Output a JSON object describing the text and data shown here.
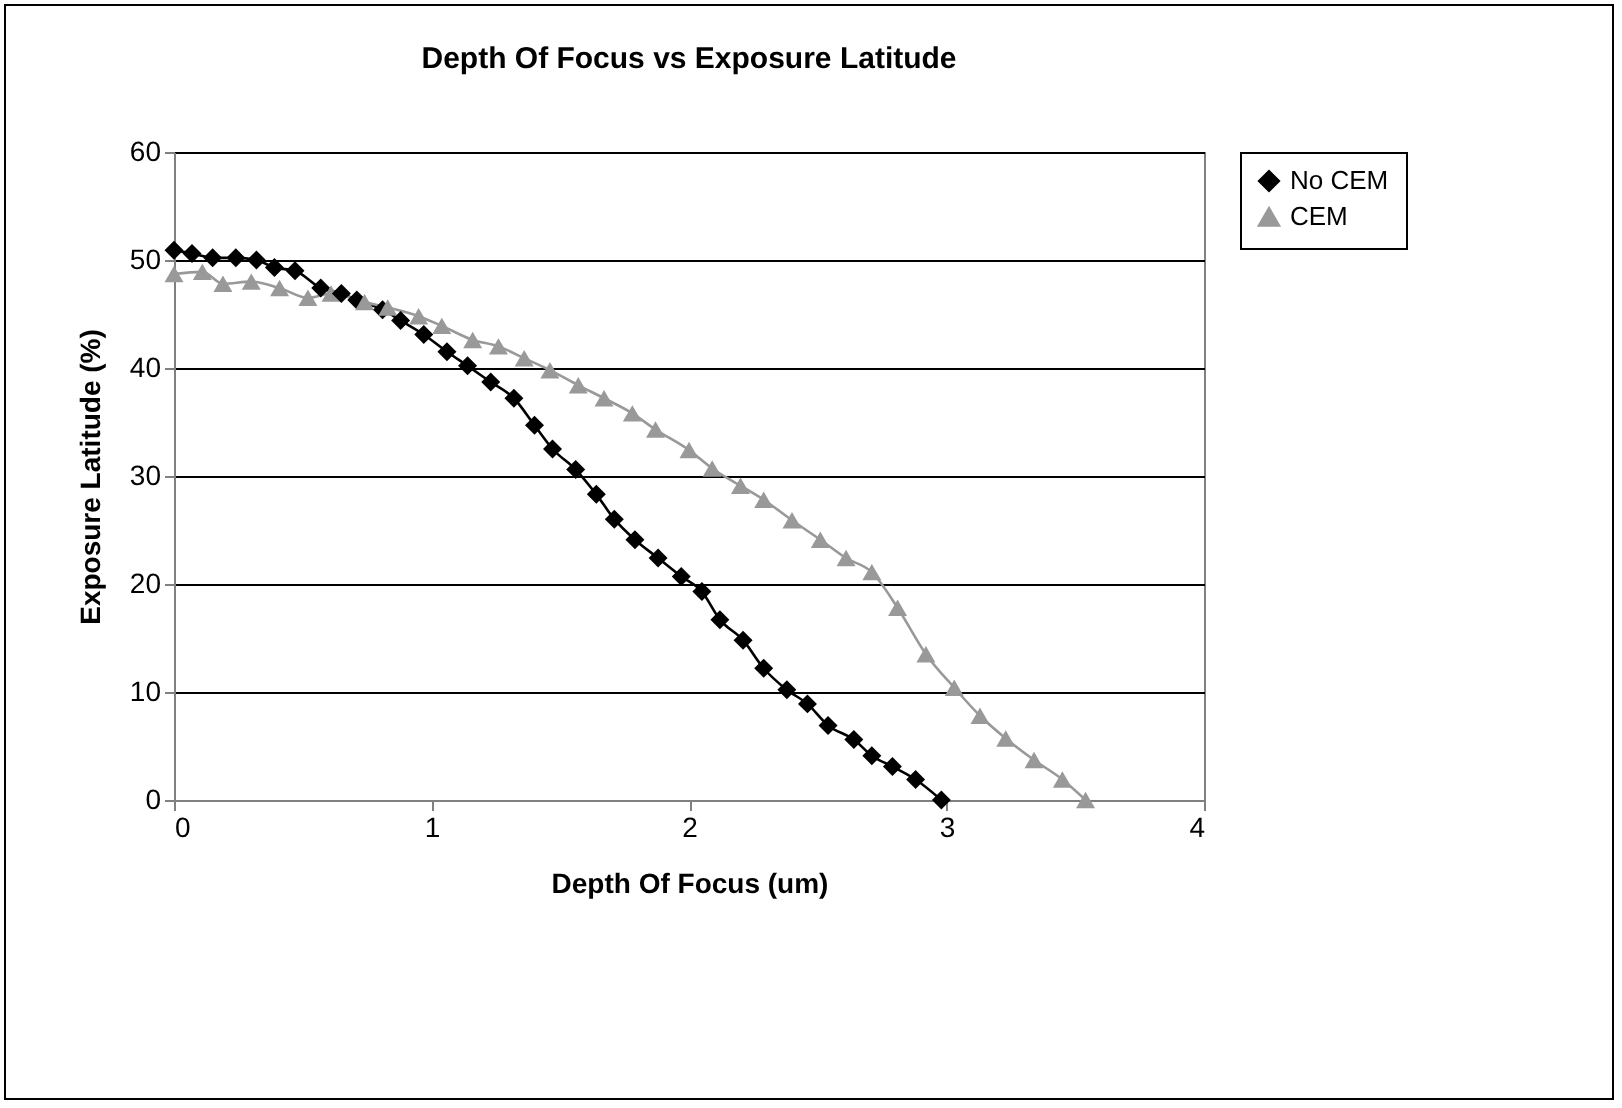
{
  "chart_data": {
    "type": "line",
    "title": "Depth Of Focus vs Exposure Latitude",
    "xlabel": "Depth Of Focus (um)",
    "ylabel": "Exposure Latitude (%)",
    "xlim": [
      0,
      4
    ],
    "xticks": [
      0,
      1,
      2,
      3,
      4
    ],
    "ylim": [
      0,
      60
    ],
    "yticks": [
      0,
      10,
      20,
      30,
      40,
      50,
      60
    ],
    "grid": "y",
    "legend": "right",
    "series": [
      {
        "name": "No CEM",
        "color": "#000000",
        "marker": "diamond",
        "x": [
          0,
          0.07,
          0.15,
          0.24,
          0.32,
          0.39,
          0.47,
          0.57,
          0.65,
          0.71,
          0.81,
          0.88,
          0.97,
          1.06,
          1.14,
          1.23,
          1.32,
          1.4,
          1.47,
          1.56,
          1.64,
          1.71,
          1.79,
          1.88,
          1.97,
          2.05,
          2.12,
          2.21,
          2.29,
          2.38,
          2.46,
          2.54,
          2.64,
          2.71,
          2.79,
          2.88,
          2.98
        ],
        "values": [
          50.9,
          50.6,
          50.2,
          50.2,
          50,
          49.3,
          49,
          47.4,
          46.9,
          46.3,
          45.4,
          44.4,
          43.1,
          41.5,
          40.2,
          38.7,
          37.2,
          34.7,
          32.5,
          30.6,
          28.3,
          26,
          24.1,
          22.4,
          20.7,
          19.3,
          16.7,
          14.8,
          12.2,
          10.2,
          8.9,
          6.9,
          5.6,
          4.1,
          3.1,
          1.9,
          0
        ]
      },
      {
        "name": "CEM",
        "color": "#999999",
        "marker": "triangle",
        "x": [
          0,
          0.11,
          0.19,
          0.3,
          0.41,
          0.52,
          0.61,
          0.74,
          0.83,
          0.95,
          1.04,
          1.16,
          1.26,
          1.36,
          1.46,
          1.57,
          1.67,
          1.78,
          1.87,
          2,
          2.09,
          2.2,
          2.29,
          2.4,
          2.51,
          2.61,
          2.71,
          2.81,
          2.92,
          3.03,
          3.13,
          3.23,
          3.34,
          3.45,
          3.54
        ],
        "values": [
          48.7,
          48.9,
          47.8,
          48,
          47.4,
          46.5,
          46.9,
          46.1,
          45.6,
          44.8,
          43.9,
          42.6,
          42,
          40.9,
          39.8,
          38.4,
          37.2,
          35.8,
          34.3,
          32.4,
          30.7,
          29.1,
          27.8,
          25.9,
          24.1,
          22.4,
          21.1,
          17.8,
          13.5,
          10.4,
          7.8,
          5.7,
          3.7,
          1.9,
          0
        ]
      }
    ]
  }
}
